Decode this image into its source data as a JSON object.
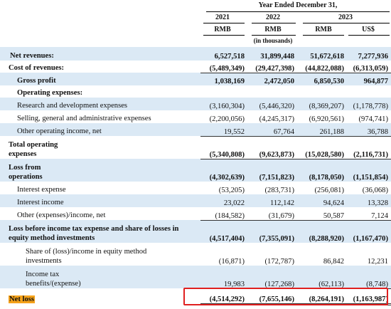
{
  "header": {
    "period": "Year Ended December 31,",
    "years": [
      "2021",
      "2022",
      "2023",
      ""
    ],
    "currencies": [
      "RMB",
      "RMB",
      "RMB",
      "US$"
    ],
    "unit_note": "(in thousands)"
  },
  "rows": [
    {
      "label": "Net revenues:",
      "values": [
        "6,527,518",
        "31,899,448",
        "51,672,618",
        "7,277,936"
      ]
    },
    {
      "label": "Cost of revenues:",
      "values": [
        "(5,489,349)",
        "(29,427,398)",
        "(44,822,088)",
        "(6,313,059)"
      ]
    },
    {
      "label": "Gross profit",
      "values": [
        "1,038,169",
        "2,472,050",
        "6,850,530",
        "964,877"
      ]
    },
    {
      "label": "Operating expenses:",
      "values": [
        "",
        "",
        "",
        ""
      ]
    },
    {
      "label": "Research and development expenses",
      "values": [
        "(3,160,304)",
        "(5,446,320)",
        "(8,369,207)",
        "(1,178,778)"
      ]
    },
    {
      "label": "Selling, general and administrative expenses",
      "values": [
        "(2,200,056)",
        "(4,245,317)",
        "(6,920,561)",
        "(974,741)"
      ]
    },
    {
      "label": "Other operating income, net",
      "values": [
        "19,552",
        "67,764",
        "261,188",
        "36,788"
      ]
    },
    {
      "label": "Total operating expenses",
      "values": [
        "(5,340,808)",
        "(9,623,873)",
        "(15,028,580)",
        "(2,116,731)"
      ]
    },
    {
      "label": "Loss from operations",
      "values": [
        "(4,302,639)",
        "(7,151,823)",
        "(8,178,050)",
        "(1,151,854)"
      ]
    },
    {
      "label": "Interest expense",
      "values": [
        "(53,205)",
        "(283,731)",
        "(256,081)",
        "(36,068)"
      ]
    },
    {
      "label": "Interest income",
      "values": [
        "23,022",
        "112,142",
        "94,624",
        "13,328"
      ]
    },
    {
      "label": "Other (expenses)/income, net",
      "values": [
        "(184,582)",
        "(31,679)",
        "50,587",
        "7,124"
      ]
    },
    {
      "label": "Loss before income tax expense and share of losses in equity method investments",
      "values": [
        "(4,517,404)",
        "(7,355,091)",
        "(8,288,920)",
        "(1,167,470)"
      ]
    },
    {
      "label": "Share of (loss)/income in equity method investments",
      "values": [
        "(16,871)",
        "(172,787)",
        "86,842",
        "12,231"
      ]
    },
    {
      "label": "Income tax benefits/(expense)",
      "values": [
        "19,983",
        "(127,268)",
        "(62,113)",
        "(8,748)"
      ]
    },
    {
      "label": "Net loss",
      "values": [
        "(4,514,292)",
        "(7,655,146)",
        "(8,264,191)",
        "(1,163,987)"
      ]
    }
  ]
}
